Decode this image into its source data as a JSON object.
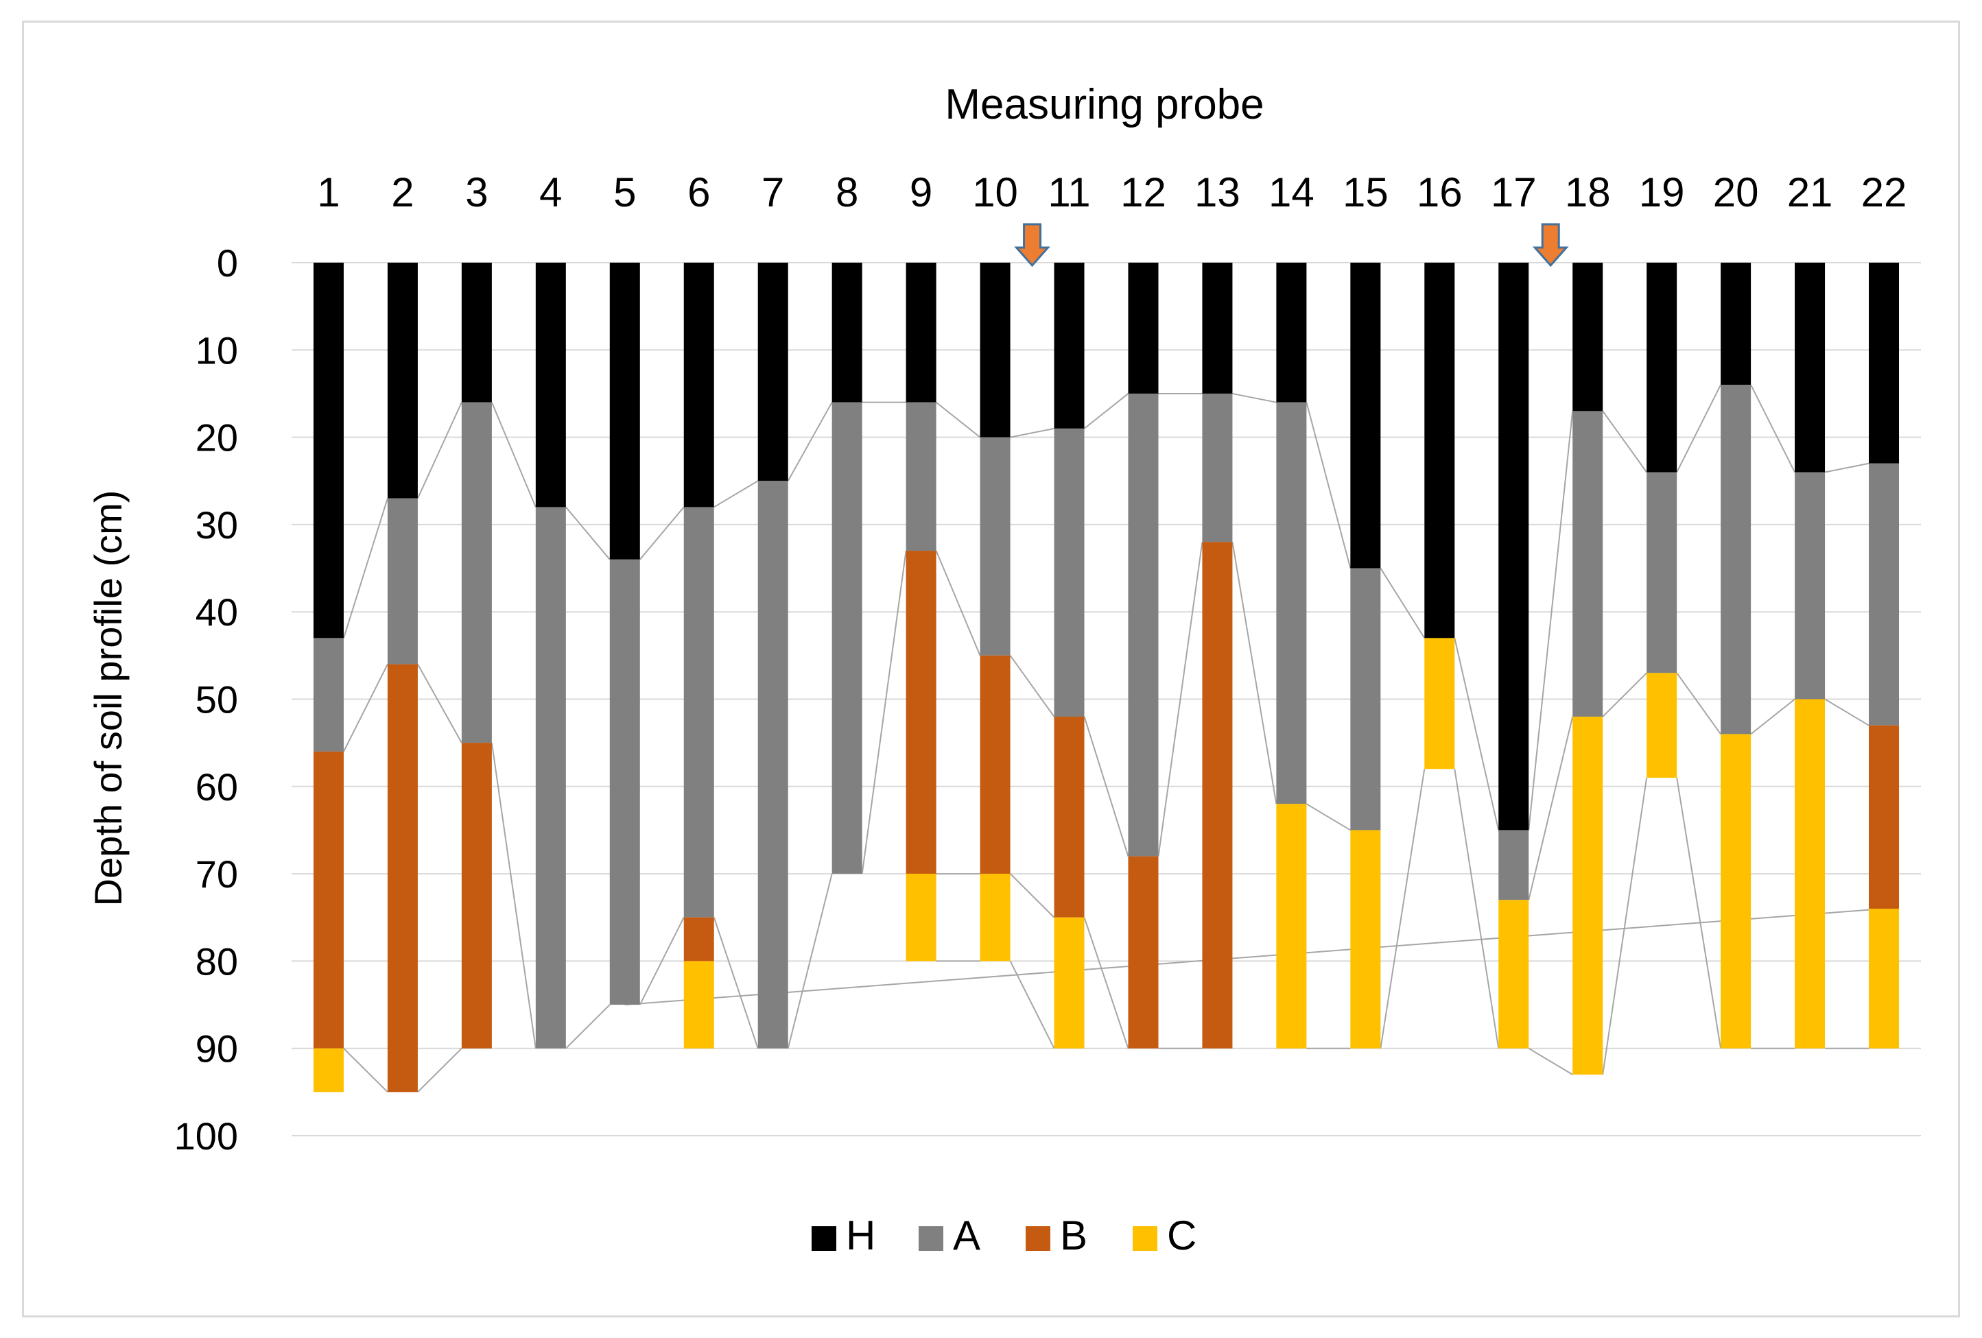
{
  "chart_data": {
    "type": "bar",
    "subtype": "stacked-floating-bar",
    "title": "Measuring probe",
    "xlabel": "Measuring probe",
    "ylabel": "Depth of soil profile (cm)",
    "categories": [
      "1",
      "2",
      "3",
      "4",
      "5",
      "6",
      "7",
      "8",
      "9",
      "10",
      "11",
      "12",
      "13",
      "14",
      "15",
      "16",
      "17",
      "18",
      "19",
      "20",
      "21",
      "22"
    ],
    "y_ticks": [
      "0",
      "10",
      "20",
      "30",
      "40",
      "50",
      "60",
      "70",
      "80",
      "90",
      "100"
    ],
    "ylim": [
      0,
      100
    ],
    "y_inverted": true,
    "x_axis_position": "top",
    "grid": true,
    "legend_position": "bottom",
    "series": [
      {
        "name": "H",
        "color": "#000000",
        "ranges": [
          [
            0,
            43
          ],
          [
            0,
            27
          ],
          [
            0,
            16
          ],
          [
            0,
            28
          ],
          [
            0,
            34
          ],
          [
            0,
            28
          ],
          [
            0,
            25
          ],
          [
            0,
            16
          ],
          [
            0,
            16
          ],
          [
            0,
            20
          ],
          [
            0,
            19
          ],
          [
            0,
            15
          ],
          [
            0,
            15
          ],
          [
            0,
            16
          ],
          [
            0,
            35
          ],
          [
            0,
            43
          ],
          [
            0,
            65
          ],
          [
            0,
            17
          ],
          [
            0,
            24
          ],
          [
            0,
            14
          ],
          [
            0,
            24
          ],
          [
            0,
            23
          ]
        ]
      },
      {
        "name": "A",
        "color": "#808080",
        "ranges": [
          [
            43,
            56
          ],
          [
            27,
            46
          ],
          [
            16,
            55
          ],
          [
            28,
            90
          ],
          [
            34,
            85
          ],
          [
            28,
            75
          ],
          [
            25,
            90
          ],
          [
            16,
            70
          ],
          [
            16,
            33
          ],
          [
            20,
            45
          ],
          [
            19,
            52
          ],
          [
            15,
            68
          ],
          [
            15,
            32
          ],
          [
            16,
            62
          ],
          [
            35,
            65
          ],
          null,
          [
            65,
            73
          ],
          [
            17,
            52
          ],
          [
            24,
            47
          ],
          [
            14,
            54
          ],
          [
            24,
            50
          ],
          [
            23,
            53
          ]
        ]
      },
      {
        "name": "B",
        "color": "#c55a11",
        "ranges": [
          [
            56,
            90
          ],
          [
            46,
            95
          ],
          [
            55,
            90
          ],
          null,
          null,
          [
            75,
            80
          ],
          null,
          null,
          [
            33,
            70
          ],
          [
            45,
            70
          ],
          [
            52,
            75
          ],
          [
            68,
            90
          ],
          [
            32,
            90
          ],
          null,
          null,
          null,
          null,
          null,
          null,
          null,
          null,
          [
            53,
            74
          ]
        ]
      },
      {
        "name": "C",
        "color": "#ffc000",
        "ranges": [
          [
            90,
            95
          ],
          null,
          null,
          null,
          null,
          [
            80,
            90
          ],
          null,
          null,
          [
            70,
            80
          ],
          [
            70,
            80
          ],
          [
            75,
            90
          ],
          null,
          null,
          [
            62,
            90
          ],
          [
            65,
            90
          ],
          [
            43,
            58
          ],
          [
            73,
            90
          ],
          [
            52,
            93
          ],
          [
            47,
            59
          ],
          [
            54,
            90
          ],
          [
            50,
            90
          ],
          [
            74,
            90
          ]
        ]
      }
    ],
    "annotations": [
      {
        "type": "arrow-down",
        "between": [
          "10",
          "11"
        ],
        "color": "#ed7d31"
      },
      {
        "type": "arrow-down",
        "between": [
          "17",
          "18"
        ],
        "color": "#ed7d31"
      }
    ],
    "trend_line": {
      "from_probe": "5",
      "from_depth": 85,
      "to_probe": "22",
      "to_depth": 74
    },
    "legend": [
      "H",
      "A",
      "B",
      "C"
    ]
  }
}
